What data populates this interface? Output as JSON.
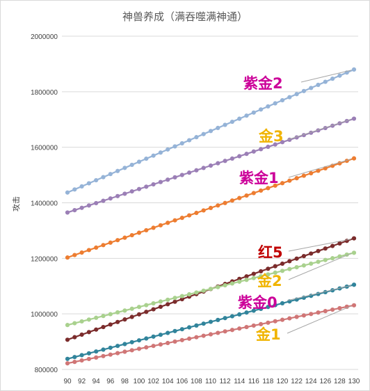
{
  "chart_data": {
    "type": "line",
    "title": "神兽养成（满吞噬满神通）",
    "xlabel": "",
    "ylabel": "攻击",
    "xlim": [
      90,
      130
    ],
    "ylim": [
      800000,
      2000000
    ],
    "x_ticks": [
      90,
      92,
      94,
      96,
      98,
      100,
      102,
      104,
      106,
      108,
      110,
      112,
      114,
      116,
      118,
      120,
      122,
      124,
      126,
      128,
      130
    ],
    "y_ticks": [
      800000,
      1000000,
      1200000,
      1400000,
      1600000,
      1800000,
      2000000
    ],
    "y_tick_labels": [
      "800000",
      "1000000",
      "1200000",
      "1400000",
      "1600000",
      "1800000",
      "2000000"
    ],
    "grid": "horizontal",
    "legend": "none",
    "series": [
      {
        "name": "紫金2",
        "color": "#95b3d7",
        "start": 1437000,
        "end": 1880000,
        "label_color": "#cc0099"
      },
      {
        "name": "金3",
        "color": "#9b7fb6",
        "start": 1365000,
        "end": 1703000,
        "label_color": "#f0b400"
      },
      {
        "name": "紫金1",
        "color": "#ed7d31",
        "start": 1203000,
        "end": 1560000,
        "label_color": "#cc0099"
      },
      {
        "name": "红5",
        "color": "#7b2c2c",
        "start": 907000,
        "end": 1272000,
        "label_color": "#c00000"
      },
      {
        "name": "金2",
        "color": "#a9d18e",
        "start": 960000,
        "end": 1220000,
        "label_color": "#f0b400"
      },
      {
        "name": "紫金0",
        "color": "#31849b",
        "start": 838000,
        "end": 1105000,
        "label_color": "#cc0099"
      },
      {
        "name": "金1",
        "color": "#d07676",
        "start": 822000,
        "end": 1031000,
        "label_color": "#f0b400"
      }
    ]
  }
}
